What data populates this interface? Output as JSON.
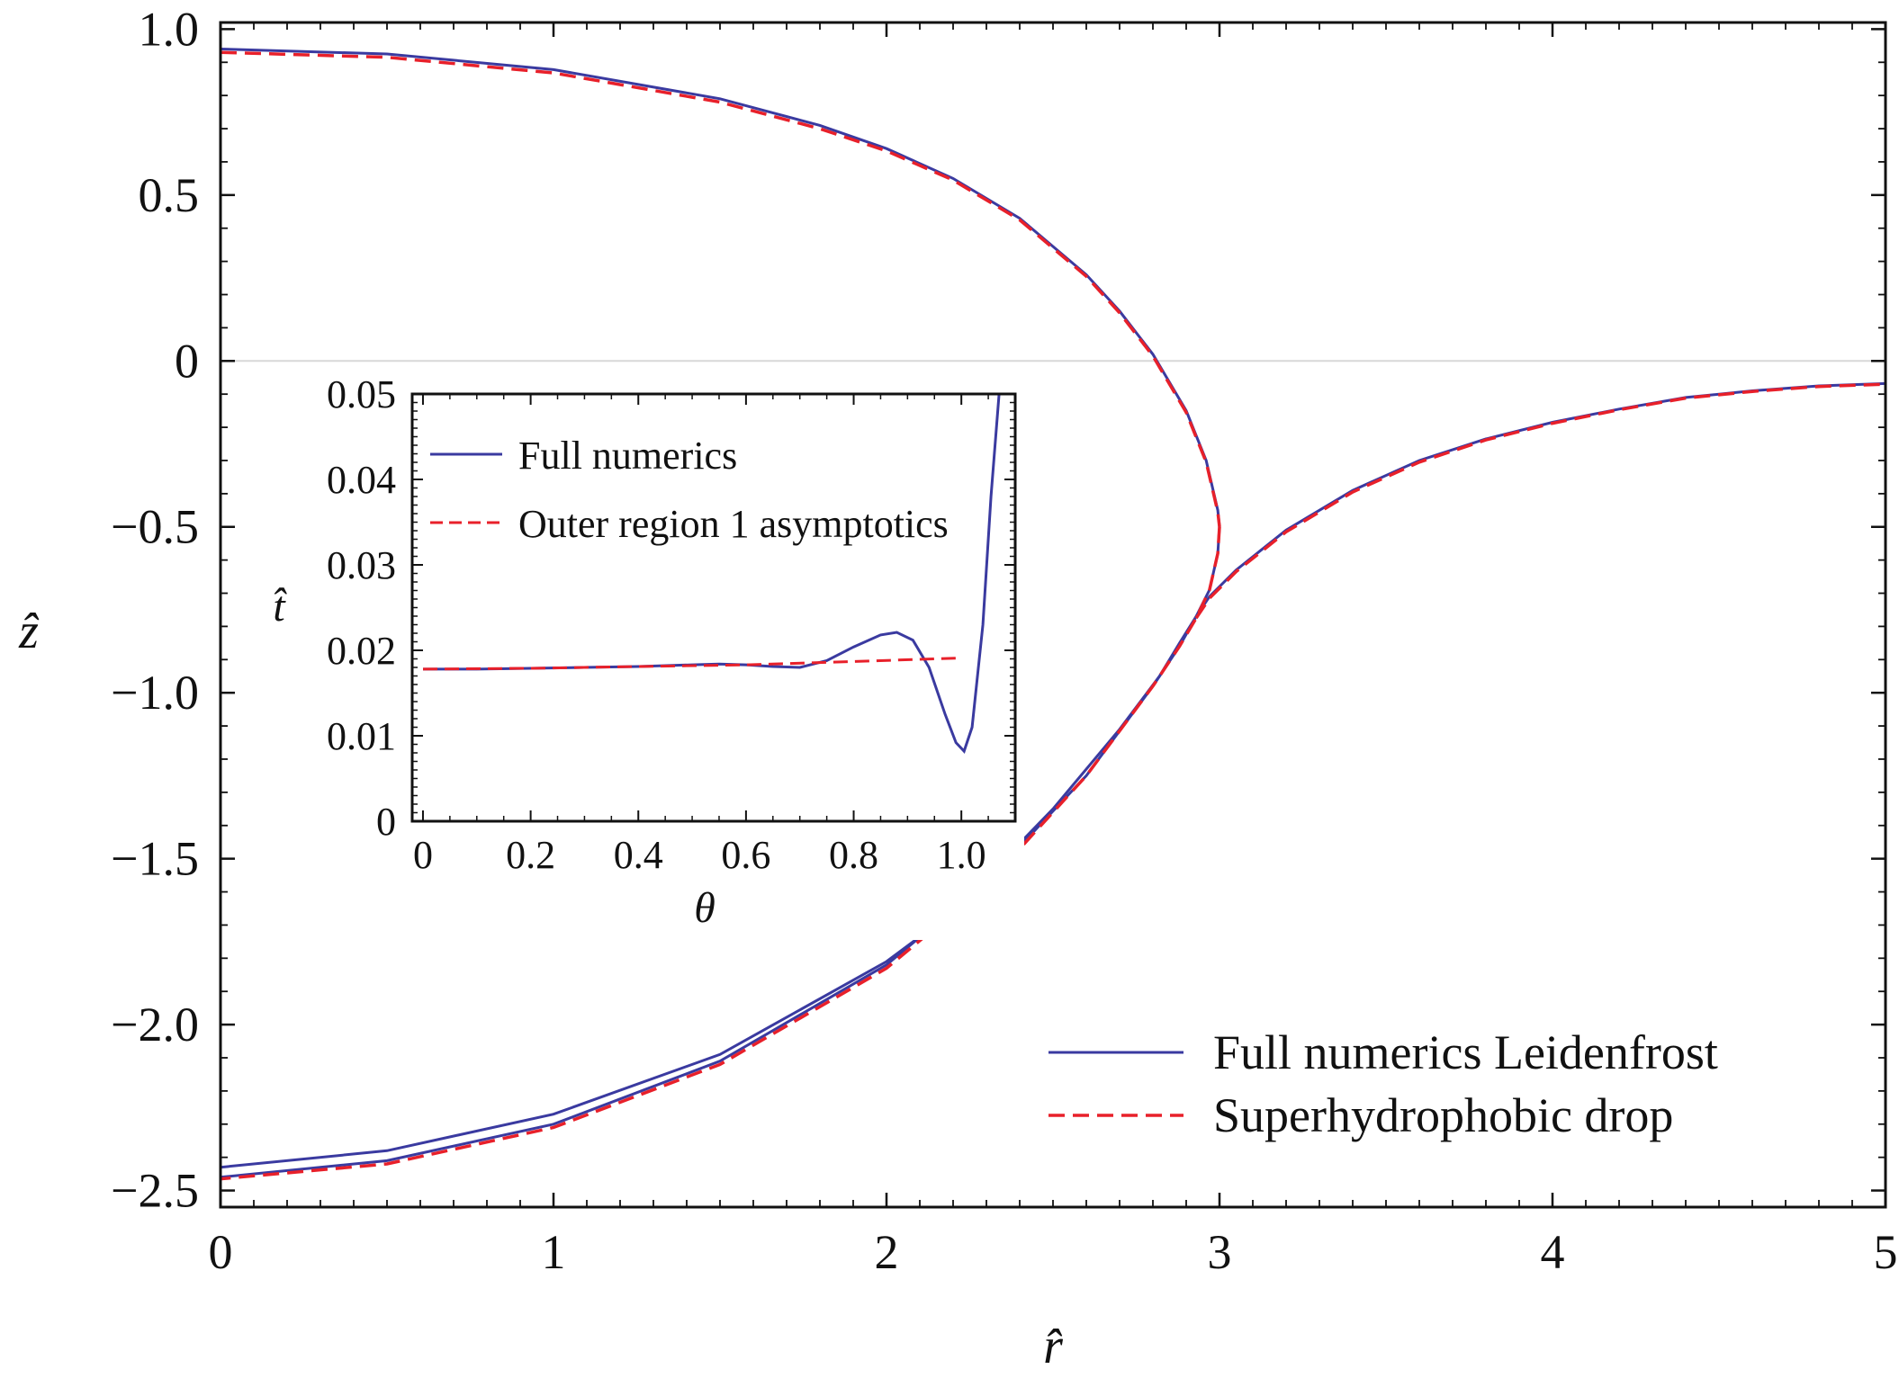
{
  "chart_data": [
    {
      "type": "line",
      "xlabel": "r̂",
      "ylabel": "ẑ",
      "xlim": [
        0,
        5
      ],
      "ylim": [
        -2.55,
        1.02
      ],
      "x_ticks": [
        0,
        1,
        2,
        3,
        4,
        5
      ],
      "x_tick_labels": [
        "0",
        "1",
        "2",
        "3",
        "4",
        "5"
      ],
      "y_ticks": [
        1.0,
        0.5,
        0,
        -0.5,
        -1.0,
        -1.5,
        -2.0,
        -2.5
      ],
      "y_tick_labels": [
        "1.0",
        "0.5",
        "0",
        "−0.5",
        "−1.0",
        "−1.5",
        "−2.0",
        "−2.5"
      ],
      "zero_line": true,
      "legend_position": "bottom-right",
      "colors": {
        "numerics": "#3a3aa0",
        "asymptotic": "#e8202a",
        "zero_line": "#d8d8d8"
      },
      "series": [
        {
          "name": "Full numerics Leidenfrost",
          "style": "solid",
          "segments": [
            [
              [
                0,
                0.94
              ],
              [
                0.5,
                0.925
              ],
              [
                1.0,
                0.878
              ],
              [
                1.5,
                0.79
              ],
              [
                1.8,
                0.71
              ],
              [
                2.0,
                0.64
              ],
              [
                2.2,
                0.55
              ],
              [
                2.4,
                0.43
              ],
              [
                2.6,
                0.26
              ],
              [
                2.7,
                0.15
              ],
              [
                2.8,
                0.02
              ],
              [
                2.9,
                -0.15
              ],
              [
                2.96,
                -0.3
              ],
              [
                2.995,
                -0.45
              ],
              [
                3.0,
                -0.5
              ]
            ],
            [
              [
                3.0,
                -0.5
              ],
              [
                2.995,
                -0.58
              ],
              [
                2.97,
                -0.69
              ],
              [
                2.93,
                -0.77
              ],
              [
                2.88,
                -0.85
              ],
              [
                2.82,
                -0.95
              ],
              [
                2.7,
                -1.11
              ],
              [
                2.5,
                -1.35
              ],
              [
                2.2,
                -1.66
              ],
              [
                2.0,
                -1.81
              ],
              [
                1.5,
                -2.09
              ],
              [
                1.0,
                -2.27
              ],
              [
                0.5,
                -2.38
              ],
              [
                0,
                -2.43
              ]
            ],
            [
              [
                2.93,
                -0.77
              ],
              [
                2.97,
                -0.71
              ],
              [
                3.05,
                -0.63
              ],
              [
                3.2,
                -0.51
              ],
              [
                3.4,
                -0.39
              ],
              [
                3.6,
                -0.3
              ],
              [
                3.8,
                -0.235
              ],
              [
                4.0,
                -0.185
              ],
              [
                4.2,
                -0.145
              ],
              [
                4.4,
                -0.11
              ],
              [
                4.6,
                -0.09
              ],
              [
                4.8,
                -0.075
              ],
              [
                5.0,
                -0.068
              ]
            ],
            [
              [
                2.93,
                -0.77
              ],
              [
                2.88,
                -0.86
              ],
              [
                2.8,
                -0.98
              ],
              [
                2.6,
                -1.25
              ],
              [
                2.3,
                -1.57
              ],
              [
                2.0,
                -1.82
              ],
              [
                1.5,
                -2.11
              ],
              [
                1.0,
                -2.3
              ],
              [
                0.5,
                -2.41
              ],
              [
                0,
                -2.46
              ]
            ]
          ]
        },
        {
          "name": "Superhydrophobic drop",
          "style": "dashed",
          "segments": [
            [
              [
                0,
                0.93
              ],
              [
                0.5,
                0.915
              ],
              [
                1.0,
                0.868
              ],
              [
                1.5,
                0.78
              ],
              [
                1.8,
                0.7
              ],
              [
                2.0,
                0.633
              ],
              [
                2.2,
                0.545
              ],
              [
                2.4,
                0.425
              ],
              [
                2.6,
                0.255
              ],
              [
                2.7,
                0.145
              ],
              [
                2.8,
                0.015
              ],
              [
                2.9,
                -0.155
              ],
              [
                2.96,
                -0.305
              ],
              [
                2.995,
                -0.455
              ],
              [
                3.0,
                -0.5
              ]
            ],
            [
              [
                3.0,
                -0.5
              ],
              [
                2.995,
                -0.58
              ],
              [
                2.97,
                -0.69
              ],
              [
                2.93,
                -0.775
              ],
              [
                2.88,
                -0.86
              ],
              [
                2.8,
                -0.98
              ],
              [
                2.6,
                -1.25
              ],
              [
                2.3,
                -1.58
              ],
              [
                2.0,
                -1.83
              ],
              [
                1.5,
                -2.12
              ],
              [
                1.0,
                -2.31
              ],
              [
                0.5,
                -2.42
              ],
              [
                0,
                -2.465
              ]
            ],
            [
              [
                2.93,
                -0.775
              ],
              [
                2.97,
                -0.715
              ],
              [
                3.05,
                -0.635
              ],
              [
                3.2,
                -0.515
              ],
              [
                3.4,
                -0.395
              ],
              [
                3.6,
                -0.305
              ],
              [
                3.8,
                -0.238
              ],
              [
                4.0,
                -0.188
              ],
              [
                4.2,
                -0.147
              ],
              [
                4.4,
                -0.112
              ],
              [
                4.6,
                -0.092
              ],
              [
                4.8,
                -0.077
              ],
              [
                5.0,
                -0.07
              ]
            ]
          ]
        }
      ]
    },
    {
      "type": "line",
      "inset": true,
      "xlabel": "θ",
      "ylabel": "t̂",
      "xlim": [
        -0.02,
        1.1
      ],
      "ylim": [
        0,
        0.05
      ],
      "x_ticks": [
        0,
        0.2,
        0.4,
        0.6,
        0.8,
        1.0
      ],
      "x_tick_labels": [
        "0",
        "0.2",
        "0.4",
        "0.6",
        "0.8",
        "1.0"
      ],
      "y_ticks": [
        0,
        0.01,
        0.02,
        0.03,
        0.04,
        0.05
      ],
      "y_tick_labels": [
        "0",
        "0.01",
        "0.02",
        "0.03",
        "0.04",
        "0.05"
      ],
      "legend_position": "top-left",
      "series": [
        {
          "name": "Full numerics",
          "style": "solid",
          "points": [
            [
              0,
              0.0178
            ],
            [
              0.1,
              0.0178
            ],
            [
              0.2,
              0.0179
            ],
            [
              0.3,
              0.018
            ],
            [
              0.4,
              0.0181
            ],
            [
              0.5,
              0.0183
            ],
            [
              0.55,
              0.0184
            ],
            [
              0.6,
              0.0183
            ],
            [
              0.65,
              0.0181
            ],
            [
              0.7,
              0.018
            ],
            [
              0.75,
              0.0188
            ],
            [
              0.8,
              0.0204
            ],
            [
              0.85,
              0.0218
            ],
            [
              0.88,
              0.0221
            ],
            [
              0.91,
              0.0212
            ],
            [
              0.94,
              0.018
            ],
            [
              0.97,
              0.0125
            ],
            [
              0.99,
              0.0092
            ],
            [
              1.005,
              0.0082
            ],
            [
              1.02,
              0.011
            ],
            [
              1.04,
              0.023
            ],
            [
              1.055,
              0.038
            ],
            [
              1.07,
              0.05
            ]
          ]
        },
        {
          "name": "Outer region 1 asymptotics",
          "style": "dashed",
          "points": [
            [
              0,
              0.0178
            ],
            [
              0.2,
              0.0179
            ],
            [
              0.4,
              0.0181
            ],
            [
              0.6,
              0.0183
            ],
            [
              0.8,
              0.0187
            ],
            [
              0.95,
              0.019
            ],
            [
              1.0,
              0.0191
            ]
          ]
        }
      ]
    }
  ]
}
